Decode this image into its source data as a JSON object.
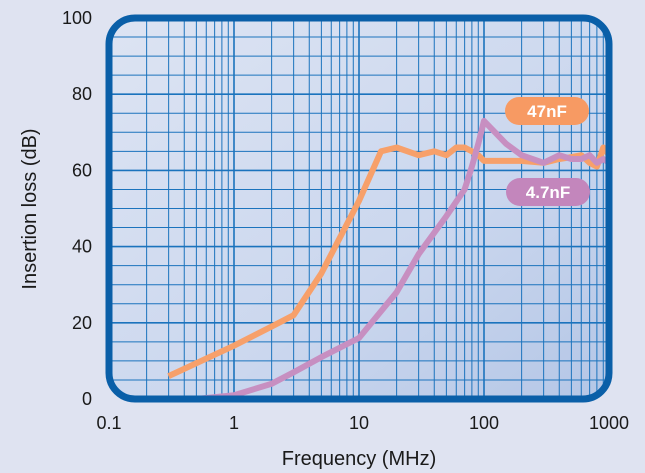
{
  "chart_data": {
    "type": "line",
    "xlabel": "Frequency (MHz)",
    "ylabel": "Insertion loss (dB)",
    "x_scale": "log",
    "xlim": [
      0.1,
      1000
    ],
    "ylim": [
      0,
      100
    ],
    "x_ticks": [
      {
        "value": 0.1,
        "label": "0.1"
      },
      {
        "value": 1,
        "label": "1"
      },
      {
        "value": 10,
        "label": "10"
      },
      {
        "value": 100,
        "label": "100"
      },
      {
        "value": 1000,
        "label": "1000"
      }
    ],
    "y_ticks": [
      {
        "value": 0,
        "label": "0"
      },
      {
        "value": 20,
        "label": "20"
      },
      {
        "value": 40,
        "label": "40"
      },
      {
        "value": 60,
        "label": "60"
      },
      {
        "value": 80,
        "label": "80"
      },
      {
        "value": 100,
        "label": "100"
      }
    ],
    "grid": true,
    "series": [
      {
        "name": "47nF",
        "color": "#f7a06a",
        "label_color": "#f79a63",
        "points": [
          [
            0.3,
            6
          ],
          [
            1,
            14
          ],
          [
            2,
            19
          ],
          [
            3,
            22
          ],
          [
            5,
            33
          ],
          [
            10,
            52
          ],
          [
            15,
            65
          ],
          [
            20,
            66
          ],
          [
            30,
            64
          ],
          [
            40,
            65
          ],
          [
            50,
            64
          ],
          [
            60,
            66
          ],
          [
            70,
            66
          ],
          [
            80,
            65
          ],
          [
            90,
            64
          ],
          [
            100,
            62.5
          ],
          [
            200,
            62.5
          ],
          [
            300,
            62
          ],
          [
            400,
            63
          ],
          [
            500,
            63.5
          ],
          [
            600,
            64
          ],
          [
            700,
            62
          ],
          [
            800,
            61
          ],
          [
            900,
            66
          ],
          [
            1000,
            64
          ]
        ]
      },
      {
        "name": "4.7nF",
        "color": "#c78fc1",
        "label_color": "#c386bc",
        "points": [
          [
            0.5,
            0
          ],
          [
            1,
            1
          ],
          [
            2,
            4
          ],
          [
            3,
            7
          ],
          [
            5,
            11
          ],
          [
            10,
            16
          ],
          [
            20,
            28
          ],
          [
            30,
            38
          ],
          [
            50,
            48
          ],
          [
            70,
            55
          ],
          [
            80,
            61
          ],
          [
            90,
            67
          ],
          [
            100,
            73
          ],
          [
            150,
            67
          ],
          [
            200,
            64
          ],
          [
            300,
            62
          ],
          [
            400,
            64
          ],
          [
            500,
            63
          ],
          [
            600,
            63
          ],
          [
            700,
            64
          ],
          [
            800,
            62
          ],
          [
            900,
            63
          ],
          [
            1000,
            62
          ]
        ]
      }
    ]
  }
}
